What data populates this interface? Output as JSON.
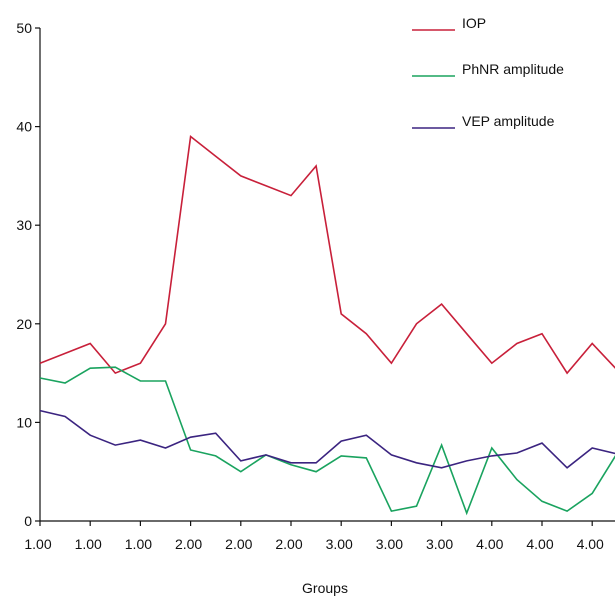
{
  "chart_data": {
    "type": "line",
    "title": "",
    "xlabel": "Groups",
    "ylabel": "",
    "ylim": [
      0,
      50
    ],
    "yticks": [
      "0",
      "10",
      "20",
      "30",
      "40",
      "50"
    ],
    "x_tick_labels": [
      "1.00",
      "1.00",
      "1.00",
      "2.00",
      "2.00",
      "2.00",
      "3.00",
      "3.00",
      "3.00",
      "4.00",
      "4.00",
      "4.00"
    ],
    "legend_position": "top-right",
    "grid": false,
    "series": [
      {
        "name": "IOP",
        "color": "#c8203a",
        "values": [
          16,
          17,
          18,
          15,
          16,
          20,
          39,
          37,
          35,
          34,
          33,
          36,
          21,
          19,
          16,
          20,
          22,
          19,
          16,
          18,
          19,
          15,
          18,
          15.3
        ]
      },
      {
        "name": "PhNR amplitude",
        "color": "#1aa35f",
        "values": [
          14.5,
          14,
          15.5,
          15.6,
          14.2,
          14.2,
          7.2,
          6.6,
          5,
          6.7,
          5.7,
          5,
          6.6,
          6.4,
          1,
          1.5,
          7.7,
          0.8,
          7.4,
          4.2,
          2,
          1,
          2.8,
          6.9
        ]
      },
      {
        "name": "VEP amplitude",
        "color": "#3b2480",
        "values": [
          11.2,
          10.6,
          8.7,
          7.7,
          8.2,
          7.4,
          8.5,
          8.9,
          6.1,
          6.7,
          5.9,
          5.9,
          8.1,
          8.7,
          6.7,
          5.9,
          5.4,
          6.1,
          6.6,
          6.9,
          7.9,
          5.4,
          7.4,
          6.8
        ]
      }
    ]
  }
}
